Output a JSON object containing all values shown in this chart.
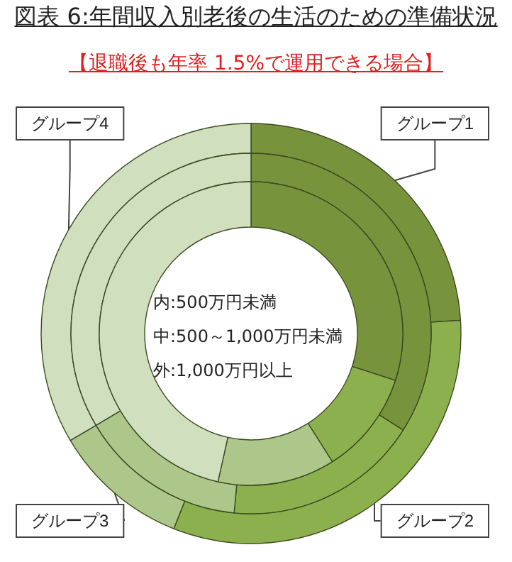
{
  "chart_data": {
    "type": "donut",
    "title": "図表 6:年間収入別老後の生活のための準備状況",
    "subtitle": "【退職後も年率 1.5%で運用できる場合】",
    "categories": [
      "グループ1",
      "グループ2",
      "グループ3",
      "グループ4"
    ],
    "colors": [
      "#77933c",
      "#8db04f",
      "#adc68a",
      "#d0dfbe"
    ],
    "series": [
      {
        "values": [
          24,
          32,
          10.5,
          33.5
        ]
      },
      {
        "values": [
          34,
          17.5,
          15,
          33.5
        ]
      },
      {
        "values": [
          30,
          11,
          12.5,
          46.5
        ]
      }
    ],
    "annotations": [
      "内:500万円未満",
      "中:500～1,000万円未満",
      "外:1,000万円以上"
    ],
    "legend": false
  }
}
